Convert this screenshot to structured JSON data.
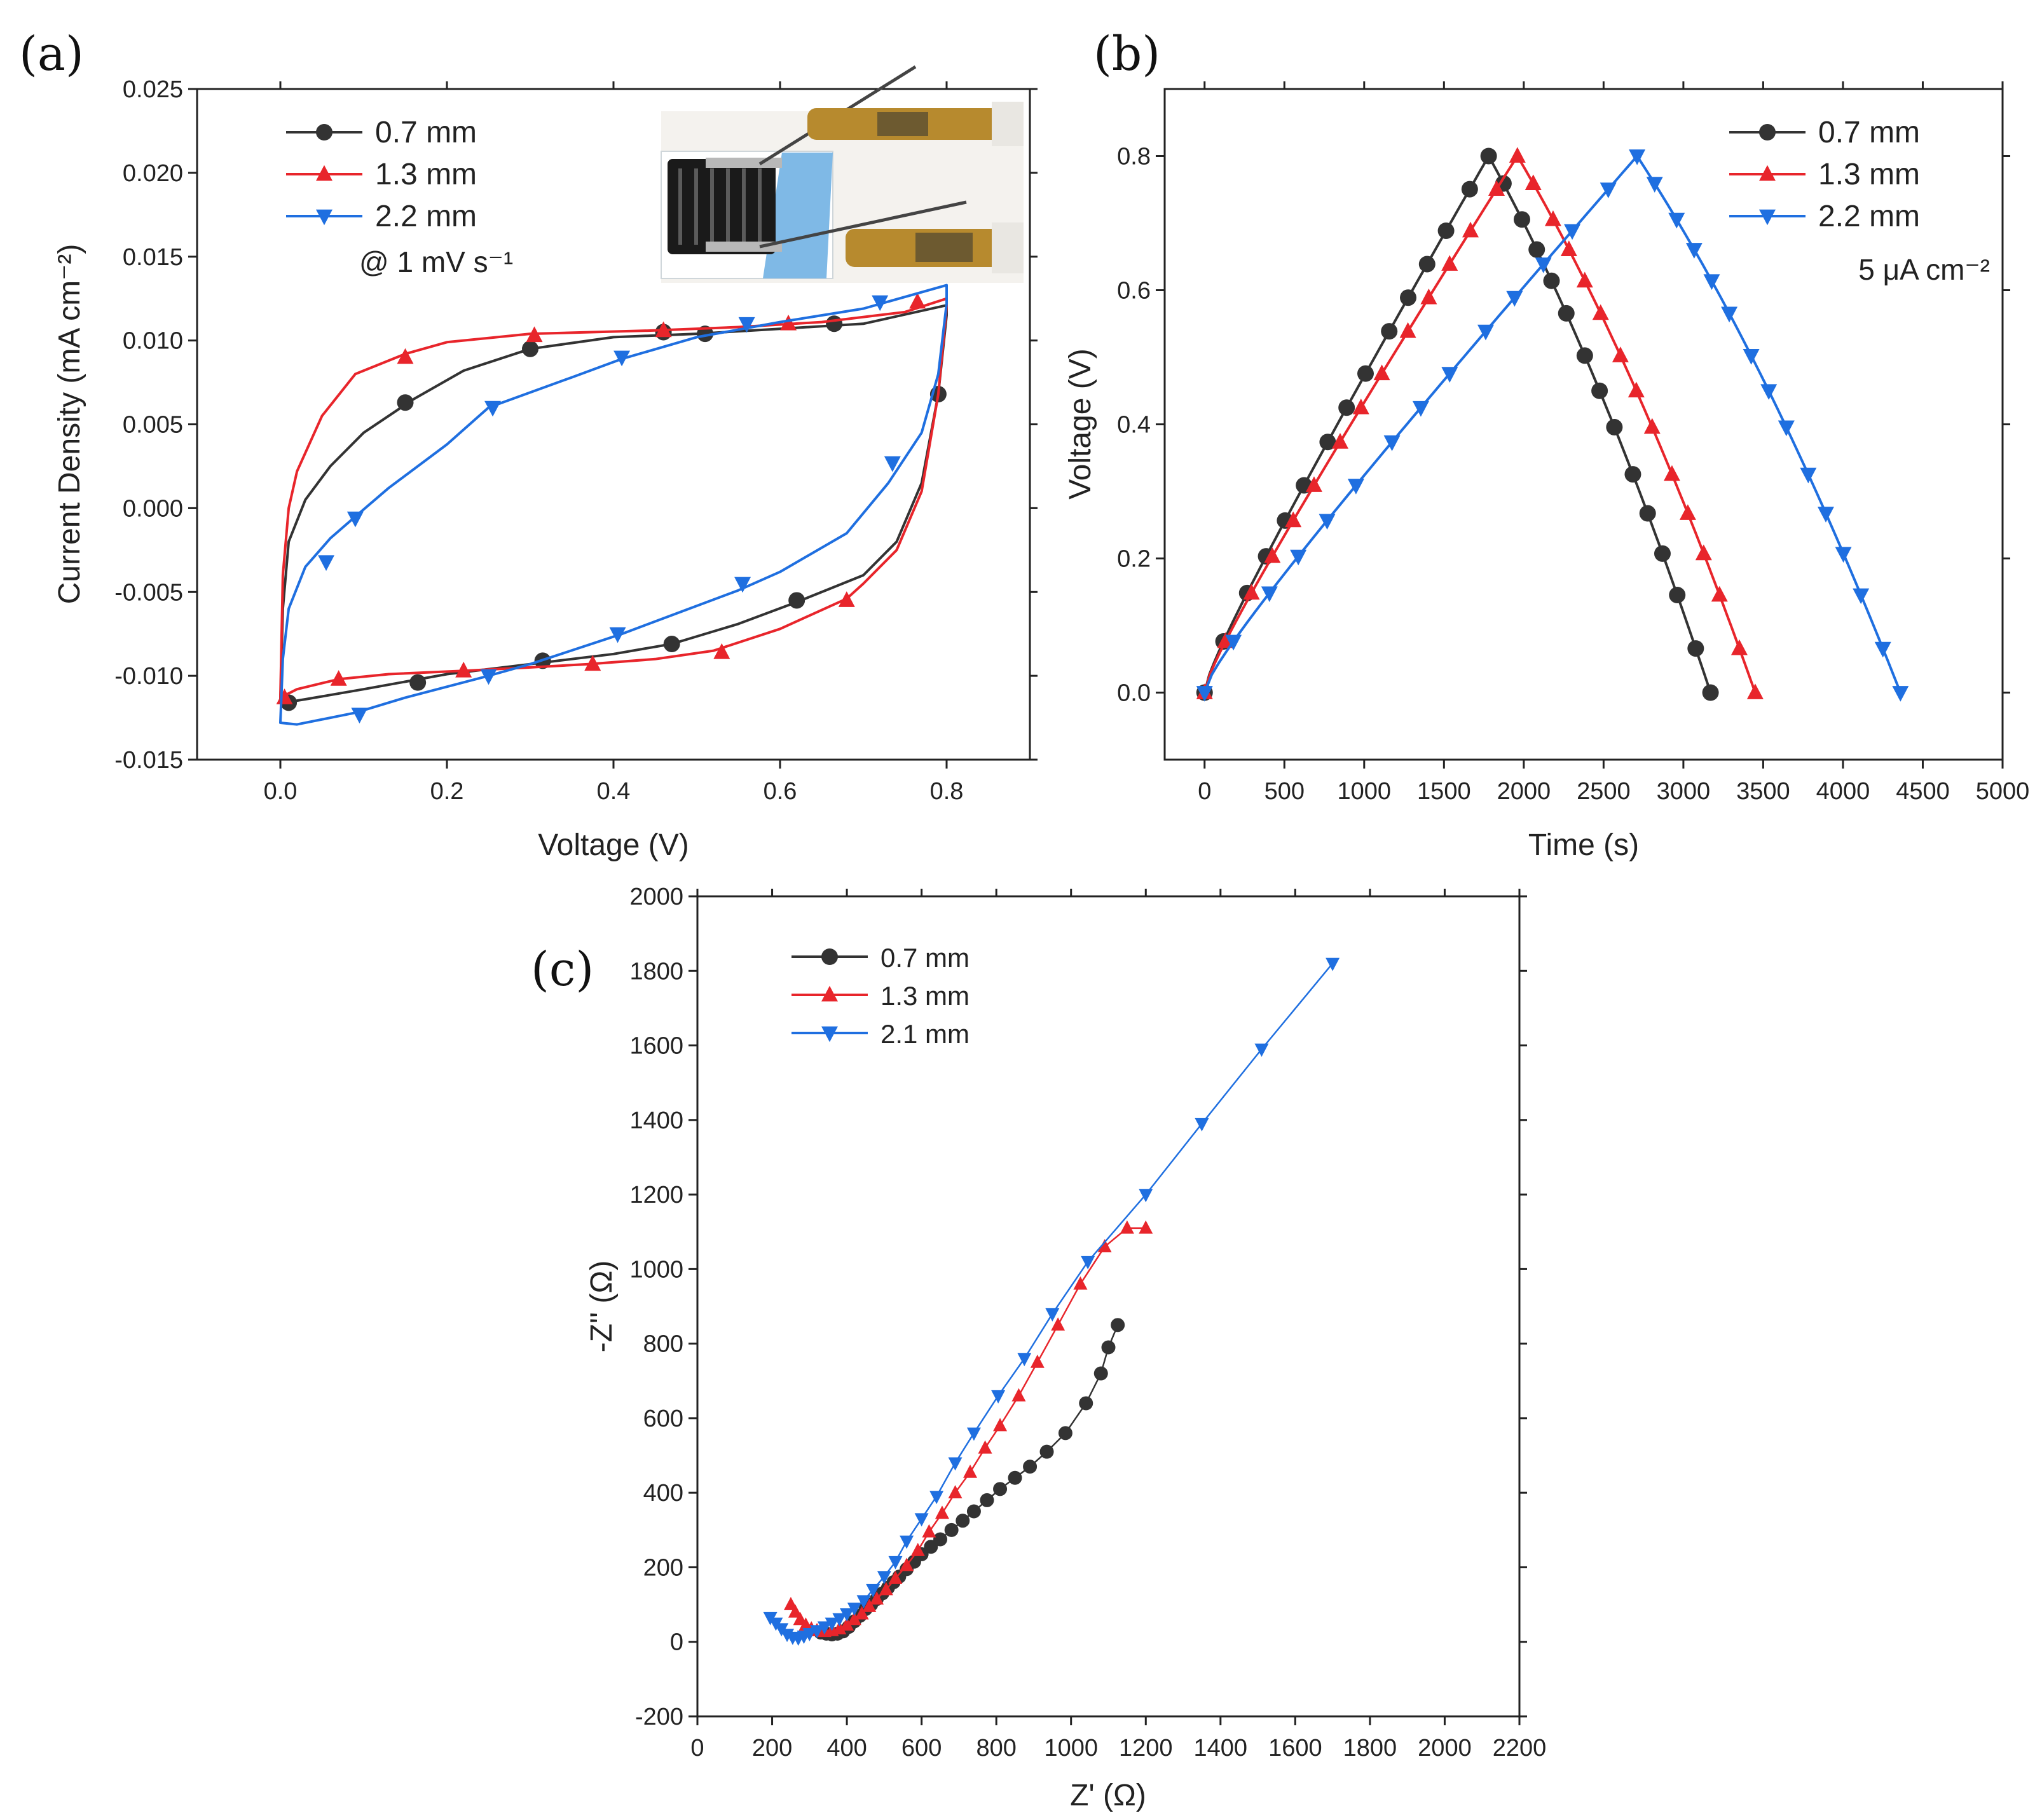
{
  "figure": {
    "panel_labels": [
      "(a)",
      "(b)",
      "(c)"
    ],
    "colors": {
      "0.7 mm": "#333333",
      "1.3 mm": "#e8252b",
      "2.2 mm": "#1f6fe0",
      "2.1 mm": "#1f6fe0"
    }
  },
  "chart_data": [
    {
      "panel": "(a)",
      "type": "line",
      "xlabel": "Voltage (V)",
      "ylabel": "Current Density (mA cm⁻²)",
      "xlim": [
        -0.1,
        0.9
      ],
      "ylim": [
        -0.015,
        0.025
      ],
      "xticks": [
        0.0,
        0.2,
        0.4,
        0.6,
        0.8
      ],
      "xtick_labels": [
        "0.0",
        "0.2",
        "0.4",
        "0.6",
        "0.8"
      ],
      "yticks": [
        -0.015,
        -0.01,
        -0.005,
        0.0,
        0.005,
        0.01,
        0.015,
        0.02,
        0.025
      ],
      "ytick_labels": [
        "-0.015",
        "-0.010",
        "-0.005",
        "0.000",
        "0.005",
        "0.010",
        "0.015",
        "0.020",
        "0.025"
      ],
      "annotation": "@ 1 mV s⁻¹",
      "legend_location": "top-left",
      "inset": "photo of device with clamps",
      "series": [
        {
          "name": "0.7 mm",
          "color": "#333333",
          "marker": "circle",
          "x": [
            0.0,
            0.003,
            0.01,
            0.03,
            0.06,
            0.1,
            0.16,
            0.22,
            0.3,
            0.4,
            0.5,
            0.6,
            0.7,
            0.8,
            0.8,
            0.79,
            0.77,
            0.74,
            0.7,
            0.66,
            0.62,
            0.55,
            0.47,
            0.4,
            0.3,
            0.2,
            0.1,
            0.03,
            0.005,
            0.0
          ],
          "y": [
            -0.0115,
            -0.006,
            -0.002,
            0.0005,
            0.0025,
            0.0045,
            0.0065,
            0.0082,
            0.0095,
            0.0102,
            0.0104,
            0.0107,
            0.011,
            0.0121,
            0.0115,
            0.0068,
            0.0015,
            -0.002,
            -0.004,
            -0.0048,
            -0.0056,
            -0.0069,
            -0.0081,
            -0.0087,
            -0.0093,
            -0.0099,
            -0.0108,
            -0.0114,
            -0.0116,
            -0.0115
          ],
          "marker_x": [
            0.01,
            0.15,
            0.3,
            0.46,
            0.51,
            0.665,
            0.79,
            0.62,
            0.47,
            0.315,
            0.165
          ],
          "marker_y": [
            -0.0116,
            0.0063,
            0.0095,
            0.0105,
            0.0104,
            0.011,
            0.0068,
            -0.0055,
            -0.0081,
            -0.0091,
            -0.0104
          ]
        },
        {
          "name": "1.3 mm",
          "color": "#e8252b",
          "marker": "triangle-up",
          "x": [
            0.0,
            0.003,
            0.01,
            0.02,
            0.05,
            0.09,
            0.15,
            0.2,
            0.3,
            0.45,
            0.55,
            0.65,
            0.75,
            0.8,
            0.8,
            0.79,
            0.77,
            0.74,
            0.7,
            0.68,
            0.6,
            0.52,
            0.45,
            0.37,
            0.3,
            0.22,
            0.13,
            0.07,
            0.02,
            0.0
          ],
          "y": [
            -0.0113,
            -0.004,
            0.0,
            0.0022,
            0.0055,
            0.008,
            0.0092,
            0.0099,
            0.0104,
            0.0106,
            0.0108,
            0.0111,
            0.0117,
            0.0125,
            0.012,
            0.0068,
            0.001,
            -0.0025,
            -0.0045,
            -0.0054,
            -0.0072,
            -0.0085,
            -0.009,
            -0.0093,
            -0.0095,
            -0.0097,
            -0.0099,
            -0.0102,
            -0.0108,
            -0.0113
          ],
          "marker_x": [
            0.005,
            0.15,
            0.305,
            0.46,
            0.61,
            0.765,
            0.68,
            0.53,
            0.375,
            0.22,
            0.07
          ],
          "marker_y": [
            -0.0113,
            0.009,
            0.0103,
            0.0106,
            0.011,
            0.0123,
            -0.0055,
            -0.0086,
            -0.0093,
            -0.0097,
            -0.0102
          ]
        },
        {
          "name": "2.2 mm",
          "color": "#1f6fe0",
          "marker": "triangle-down",
          "x": [
            0.0,
            0.003,
            0.01,
            0.03,
            0.06,
            0.09,
            0.13,
            0.2,
            0.25,
            0.35,
            0.41,
            0.5,
            0.6,
            0.7,
            0.8,
            0.8,
            0.79,
            0.77,
            0.73,
            0.68,
            0.6,
            0.55,
            0.48,
            0.41,
            0.3,
            0.25,
            0.15,
            0.09,
            0.02,
            0.0
          ],
          "y": [
            -0.0128,
            -0.009,
            -0.006,
            -0.0035,
            -0.0018,
            -0.0005,
            0.0012,
            0.0038,
            0.006,
            0.0078,
            0.0089,
            0.0102,
            0.0111,
            0.0119,
            0.0133,
            0.0122,
            0.008,
            0.0045,
            0.0015,
            -0.0015,
            -0.0038,
            -0.0049,
            -0.0062,
            -0.0075,
            -0.0093,
            -0.01,
            -0.0113,
            -0.0122,
            -0.0129,
            -0.0128
          ],
          "marker_x": [
            0.055,
            0.09,
            0.255,
            0.41,
            0.56,
            0.72,
            0.735,
            0.555,
            0.405,
            0.25,
            0.095
          ],
          "marker_y": [
            -0.0032,
            -0.0006,
            0.006,
            0.009,
            0.011,
            0.0123,
            0.0027,
            -0.0045,
            -0.0075,
            -0.01,
            -0.0123
          ]
        }
      ]
    },
    {
      "panel": "(b)",
      "type": "line",
      "xlabel": "Time (s)",
      "ylabel": "Voltage (V)",
      "xlim": [
        -250,
        5000
      ],
      "ylim": [
        -0.1,
        0.9
      ],
      "xticks": [
        0,
        500,
        1000,
        1500,
        2000,
        2500,
        3000,
        3500,
        4000,
        4500,
        5000
      ],
      "xtick_labels": [
        "0",
        "500",
        "1000",
        "1500",
        "2000",
        "2500",
        "3000",
        "3500",
        "4000",
        "4500",
        "5000"
      ],
      "yticks": [
        0.0,
        0.2,
        0.4,
        0.6,
        0.8
      ],
      "ytick_labels": [
        "0.0",
        "0.2",
        "0.4",
        "0.6",
        "0.8"
      ],
      "annotation": "5 μA cm⁻²",
      "legend_location": "top-right",
      "series": [
        {
          "name": "0.7 mm",
          "color": "#333333",
          "marker": "circle",
          "charge_end_s": 1780,
          "discharge_end_s": 3170,
          "peak_v": 0.8
        },
        {
          "name": "1.3 mm",
          "color": "#e8252b",
          "marker": "triangle-up",
          "charge_end_s": 1960,
          "discharge_end_s": 3450,
          "peak_v": 0.8
        },
        {
          "name": "2.2 mm",
          "color": "#1f6fe0",
          "marker": "triangle-down",
          "charge_end_s": 2710,
          "discharge_end_s": 4360,
          "peak_v": 0.8
        }
      ]
    },
    {
      "panel": "(c)",
      "type": "scatter",
      "xlabel": "Z' (Ω)",
      "ylabel": "-Z'' (Ω)",
      "xlim": [
        0,
        2200
      ],
      "ylim": [
        -200,
        2000
      ],
      "xticks": [
        0,
        200,
        400,
        600,
        800,
        1000,
        1200,
        1400,
        1600,
        1800,
        2000,
        2200
      ],
      "xtick_labels": [
        "0",
        "200",
        "400",
        "600",
        "800",
        "1000",
        "1200",
        "1400",
        "1600",
        "1800",
        "2000",
        "2200"
      ],
      "yticks": [
        -200,
        0,
        200,
        400,
        600,
        800,
        1000,
        1200,
        1400,
        1600,
        1800,
        2000
      ],
      "ytick_labels": [
        "-200",
        "0",
        "200",
        "400",
        "600",
        "800",
        "1000",
        "1200",
        "1400",
        "1600",
        "1800",
        "2000"
      ],
      "legend_location": "top-left",
      "series": [
        {
          "name": "0.7 mm",
          "color": "#333333",
          "marker": "circle",
          "x": [
            330,
            345,
            360,
            375,
            390,
            405,
            420,
            435,
            450,
            465,
            480,
            495,
            510,
            525,
            540,
            560,
            580,
            600,
            625,
            650,
            680,
            710,
            740,
            775,
            810,
            850,
            890,
            935,
            985,
            1040,
            1080,
            1100,
            1125
          ],
          "y": [
            25,
            22,
            20,
            22,
            28,
            40,
            55,
            70,
            88,
            100,
            115,
            130,
            145,
            160,
            175,
            195,
            215,
            235,
            255,
            275,
            300,
            325,
            350,
            380,
            410,
            440,
            470,
            510,
            560,
            640,
            720,
            790,
            850
          ]
        },
        {
          "name": "1.3 mm",
          "color": "#e8252b",
          "marker": "triangle-up",
          "x": [
            250,
            262,
            275,
            290,
            305,
            320,
            340,
            360,
            380,
            400,
            420,
            440,
            460,
            480,
            505,
            530,
            560,
            590,
            620,
            655,
            690,
            730,
            770,
            810,
            860,
            910,
            965,
            1025,
            1090,
            1150,
            1200
          ],
          "y": [
            100,
            80,
            60,
            45,
            35,
            30,
            28,
            30,
            35,
            45,
            60,
            75,
            95,
            115,
            140,
            170,
            205,
            245,
            295,
            345,
            400,
            455,
            520,
            580,
            660,
            750,
            850,
            960,
            1060,
            1110,
            1110
          ],
          "keep_last": 29
        },
        {
          "name": "2.1 mm",
          "color": "#1f6fe0",
          "marker": "triangle-down",
          "x": [
            195,
            210,
            225,
            240,
            255,
            270,
            285,
            300,
            320,
            340,
            360,
            380,
            400,
            420,
            445,
            470,
            500,
            530,
            560,
            600,
            640,
            690,
            740,
            805,
            875,
            950,
            1045,
            1200,
            1350,
            1510,
            1700
          ],
          "y": [
            65,
            50,
            35,
            20,
            12,
            10,
            15,
            22,
            30,
            40,
            50,
            62,
            75,
            90,
            110,
            140,
            175,
            215,
            270,
            330,
            390,
            480,
            560,
            660,
            760,
            880,
            1020,
            1200,
            1390,
            1590,
            1820
          ]
        }
      ]
    }
  ]
}
